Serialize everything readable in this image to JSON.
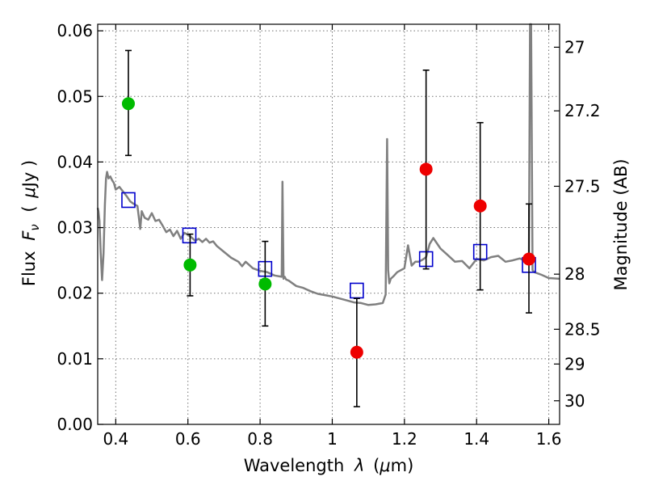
{
  "chart_data": {
    "type": "scatter",
    "xlabel_text": "Wavelength",
    "xlabel_symbol": "λ",
    "xlabel_unit_open": "(",
    "xlabel_unit_mu": "μ",
    "xlabel_unit_rest": "m)",
    "ylabel_text": "Flux",
    "ylabel_symbol": "F",
    "ylabel_symbol_sub": "ν",
    "ylabel_unit_open": "(",
    "ylabel_unit_mu": "μ",
    "ylabel_unit_rest": "Jy )",
    "ylabel_right": "Magnitude (AB)",
    "xlim": [
      0.35,
      1.63
    ],
    "ylim": [
      0.0,
      0.061
    ],
    "x_ticks": [
      {
        "value": 0.4,
        "label": "0.4"
      },
      {
        "value": 0.6,
        "label": "0.6"
      },
      {
        "value": 0.8,
        "label": "0.8"
      },
      {
        "value": 1.0,
        "label": "1"
      },
      {
        "value": 1.2,
        "label": "1.2"
      },
      {
        "value": 1.4,
        "label": "1.4"
      },
      {
        "value": 1.6,
        "label": "1.6"
      }
    ],
    "y_ticks": [
      {
        "value": 0.0,
        "label": "0.00"
      },
      {
        "value": 0.01,
        "label": "0.01"
      },
      {
        "value": 0.02,
        "label": "0.02"
      },
      {
        "value": 0.03,
        "label": "0.03"
      },
      {
        "value": 0.04,
        "label": "0.04"
      },
      {
        "value": 0.05,
        "label": "0.05"
      },
      {
        "value": 0.06,
        "label": "0.06"
      }
    ],
    "right_ticks": [
      {
        "flux": 0.0575,
        "label": "27"
      },
      {
        "flux": 0.0478,
        "label": "27.2"
      },
      {
        "flux": 0.0363,
        "label": "27.5"
      },
      {
        "flux": 0.0229,
        "label": "28"
      },
      {
        "flux": 0.0145,
        "label": "28.5"
      },
      {
        "flux": 0.0092,
        "label": "29"
      },
      {
        "flux": 0.0036,
        "label": "30"
      }
    ],
    "grid": true,
    "observed_detected": {
      "color": "#00bb00",
      "points": [
        {
          "x": 0.435,
          "y": 0.0489,
          "ylo": 0.041,
          "yhi": 0.057
        },
        {
          "x": 0.606,
          "y": 0.0243,
          "ylo": 0.0196,
          "yhi": 0.029
        },
        {
          "x": 0.814,
          "y": 0.0214,
          "ylo": 0.015,
          "yhi": 0.0279
        }
      ]
    },
    "observed_red": {
      "color": "#ee0000",
      "points": [
        {
          "x": 1.068,
          "y": 0.011,
          "ylo": 0.0027,
          "yhi": 0.0192
        },
        {
          "x": 1.26,
          "y": 0.0389,
          "ylo": 0.0237,
          "yhi": 0.054
        },
        {
          "x": 1.41,
          "y": 0.0333,
          "ylo": 0.0205,
          "yhi": 0.046
        },
        {
          "x": 1.545,
          "y": 0.0252,
          "ylo": 0.017,
          "yhi": 0.0336
        }
      ]
    },
    "model_photometry": {
      "color": "#0000cc",
      "points": [
        {
          "x": 0.435,
          "y": 0.0342
        },
        {
          "x": 0.604,
          "y": 0.0288
        },
        {
          "x": 0.814,
          "y": 0.0237
        },
        {
          "x": 1.068,
          "y": 0.0204
        },
        {
          "x": 1.26,
          "y": 0.0252
        },
        {
          "x": 1.41,
          "y": 0.0263
        },
        {
          "x": 1.545,
          "y": 0.0243
        }
      ]
    },
    "spectrum": {
      "color": "#808080",
      "x": [
        0.35,
        0.352,
        0.355,
        0.358,
        0.362,
        0.366,
        0.37,
        0.373,
        0.376,
        0.38,
        0.385,
        0.39,
        0.395,
        0.4,
        0.41,
        0.42,
        0.43,
        0.44,
        0.45,
        0.46,
        0.468,
        0.472,
        0.48,
        0.49,
        0.5,
        0.51,
        0.52,
        0.53,
        0.54,
        0.55,
        0.56,
        0.57,
        0.58,
        0.59,
        0.6,
        0.61,
        0.62,
        0.63,
        0.64,
        0.65,
        0.66,
        0.67,
        0.68,
        0.7,
        0.72,
        0.74,
        0.75,
        0.76,
        0.78,
        0.8,
        0.82,
        0.84,
        0.86,
        0.862,
        0.865,
        0.868,
        0.872,
        0.88,
        0.9,
        0.92,
        0.94,
        0.96,
        0.98,
        1.0,
        1.02,
        1.04,
        1.06,
        1.08,
        1.1,
        1.12,
        1.14,
        1.148,
        1.152,
        1.155,
        1.158,
        1.162,
        1.17,
        1.18,
        1.2,
        1.21,
        1.22,
        1.23,
        1.24,
        1.25,
        1.26,
        1.27,
        1.28,
        1.3,
        1.32,
        1.34,
        1.36,
        1.38,
        1.4,
        1.42,
        1.44,
        1.46,
        1.48,
        1.5,
        1.52,
        1.54,
        1.545,
        1.548,
        1.551,
        1.555,
        1.56,
        1.58,
        1.6,
        1.63
      ],
      "y": [
        0.033,
        0.0325,
        0.031,
        0.0265,
        0.022,
        0.026,
        0.0335,
        0.0375,
        0.0385,
        0.0375,
        0.0378,
        0.0372,
        0.0368,
        0.0358,
        0.0362,
        0.0355,
        0.0348,
        0.034,
        0.0336,
        0.0333,
        0.0298,
        0.0325,
        0.0315,
        0.0312,
        0.0322,
        0.031,
        0.0312,
        0.0303,
        0.0293,
        0.0297,
        0.0287,
        0.0295,
        0.0283,
        0.0292,
        0.0289,
        0.0285,
        0.028,
        0.0283,
        0.0278,
        0.0283,
        0.0277,
        0.0279,
        0.0272,
        0.0263,
        0.0254,
        0.0248,
        0.0241,
        0.0248,
        0.0238,
        0.0234,
        0.0232,
        0.0227,
        0.0225,
        0.037,
        0.0222,
        0.0225,
        0.0221,
        0.0219,
        0.0211,
        0.0208,
        0.0203,
        0.0199,
        0.0197,
        0.0195,
        0.0192,
        0.0189,
        0.0186,
        0.0185,
        0.0182,
        0.0183,
        0.0185,
        0.0198,
        0.0435,
        0.0235,
        0.0215,
        0.0222,
        0.0226,
        0.0232,
        0.0238,
        0.0273,
        0.0242,
        0.0248,
        0.0248,
        0.0251,
        0.0255,
        0.0275,
        0.0284,
        0.0268,
        0.0258,
        0.0248,
        0.0249,
        0.0238,
        0.0252,
        0.025,
        0.0255,
        0.0257,
        0.0248,
        0.025,
        0.0253,
        0.0248,
        0.025,
        0.061,
        0.061,
        0.0235,
        0.0232,
        0.0228,
        0.0223,
        0.0222
      ]
    }
  }
}
